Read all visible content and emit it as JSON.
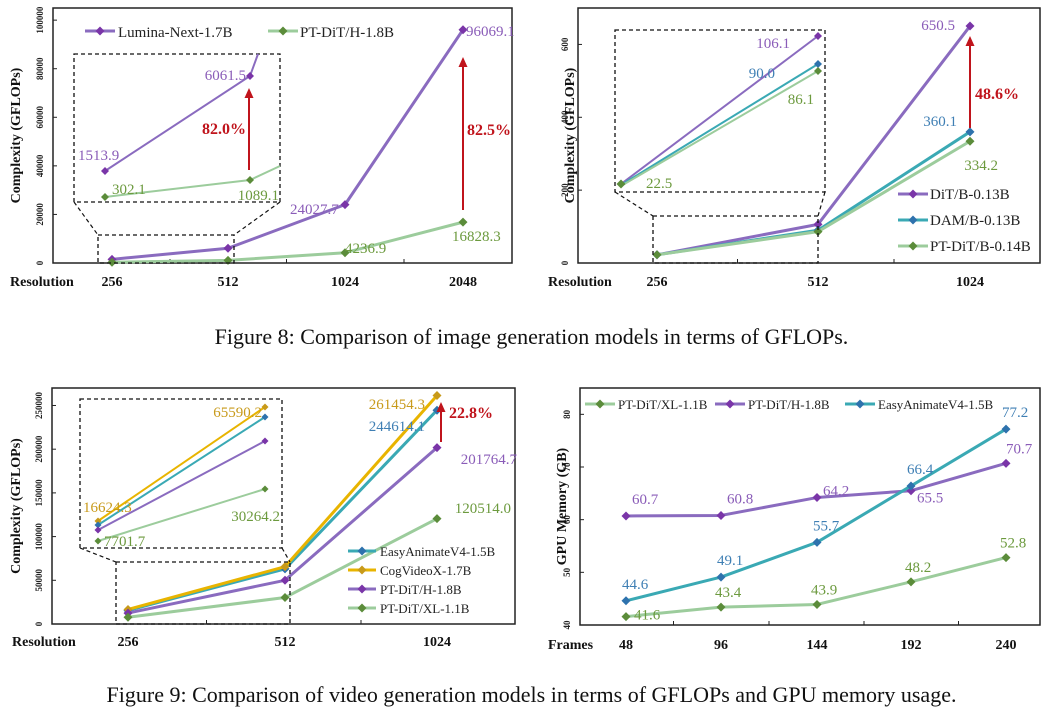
{
  "figures": [
    {
      "caption": "Figure 8: Comparison of image generation models in terms of GFLOPs."
    },
    {
      "caption": "Figure 9: Comparison of video generation models in terms of GFLOPs and GPU memory usage."
    }
  ],
  "chart_data": [
    {
      "id": "fig8-left",
      "type": "line",
      "title": "",
      "xlabel": "Resolution",
      "ylabel": "Complexity (GFLOPs)",
      "categories": [
        "256",
        "512",
        "1024",
        "2048"
      ],
      "ylim": [
        0,
        105000
      ],
      "yticks": [
        0,
        20000,
        40000,
        60000,
        80000,
        100000
      ],
      "grid": false,
      "legend": "top",
      "series": [
        {
          "name": "Lumina-Next-1.7B",
          "color": "#8a6bbf",
          "marker": "#7a35a8",
          "values": [
            1513.9,
            6061.5,
            24027.7,
            96069.1
          ],
          "labels": [
            "1513.9",
            "6061.5",
            "24027.7",
            "96069.1"
          ]
        },
        {
          "name": "PT-DiT/H-1.8B",
          "color": "#9ccc9c",
          "marker": "#5b8c3a",
          "values": [
            302.1,
            1089.1,
            4236.9,
            16828.3
          ],
          "labels": [
            "302.1",
            "1089.1",
            "4236.9",
            "16828.3"
          ]
        }
      ],
      "annotations": [
        {
          "text": "82.5%",
          "at": "2048",
          "color": "#c0141c"
        },
        {
          "text": "82.0%",
          "at": "512 (inset)",
          "color": "#c0141c"
        }
      ],
      "inset": {
        "covers": [
          "256",
          "512"
        ],
        "description": "zoomed view of 256-512 region"
      }
    },
    {
      "id": "fig8-right",
      "type": "line",
      "title": "",
      "xlabel": "Resolution",
      "ylabel": "Complexity (GFLOPs)",
      "categories": [
        "256",
        "512",
        "1024"
      ],
      "ylim": [
        0,
        700
      ],
      "yticks": [
        0,
        200,
        400,
        600
      ],
      "grid": false,
      "legend": "bottom-right",
      "series": [
        {
          "name": "DiT/B-0.13B",
          "color": "#8a6bbf",
          "marker": "#7a35a8",
          "values": [
            22.5,
            106.1,
            650.5
          ],
          "labels": [
            "",
            "106.1",
            "650.5"
          ]
        },
        {
          "name": "DAM/B-0.13B",
          "color": "#3aa9b4",
          "marker": "#2e72ad",
          "values": [
            22.5,
            90.0,
            360.1
          ],
          "labels": [
            "",
            "90.0",
            "360.1"
          ]
        },
        {
          "name": "PT-DiT/B-0.14B",
          "color": "#9ccc9c",
          "marker": "#5b8c3a",
          "values": [
            22.5,
            86.1,
            334.2
          ],
          "labels": [
            "22.5",
            "86.1",
            "334.2"
          ]
        }
      ],
      "annotations": [
        {
          "text": "48.6%",
          "at": "1024",
          "color": "#c0141c"
        }
      ],
      "inset": {
        "covers": [
          "256",
          "512"
        ],
        "description": "zoomed view of 256-512 region"
      }
    },
    {
      "id": "fig9-left",
      "type": "line",
      "title": "",
      "xlabel": "Resolution",
      "ylabel": "Complexity (GFLOPs)",
      "categories": [
        "256",
        "512",
        "1024"
      ],
      "ylim": [
        0,
        270000
      ],
      "yticks": [
        0,
        50000,
        100000,
        150000,
        200000,
        250000
      ],
      "grid": false,
      "legend": "bottom-right",
      "series": [
        {
          "name": "EasyAnimateV4-1.5B",
          "color": "#3aa9b4",
          "marker": "#2e72ad",
          "values": [
            15500,
            63000,
            244614.1
          ],
          "labels": [
            "",
            "",
            "244614.1"
          ]
        },
        {
          "name": "CogVideoX-1.7B",
          "color": "#e8b400",
          "marker": "#c89a1a",
          "values": [
            16624.3,
            65590.2,
            261454.3
          ],
          "labels": [
            "16624.3",
            "65590.2",
            "261454.3"
          ]
        },
        {
          "name": "PT-DiT/H-1.8B",
          "color": "#8a6bbf",
          "marker": "#7a35a8",
          "values": [
            12500,
            50000,
            201764.7
          ],
          "labels": [
            "",
            "",
            "201764.7"
          ]
        },
        {
          "name": "PT-DiT/XL-1.1B",
          "color": "#9ccc9c",
          "marker": "#5b8c3a",
          "values": [
            7701.7,
            30264.2,
            120514.0
          ],
          "labels": [
            "7701.7",
            "30264.2",
            "120514.0"
          ]
        }
      ],
      "annotations": [
        {
          "text": "22.8%",
          "at": "1024",
          "color": "#c0141c"
        }
      ],
      "inset": {
        "covers": [
          "256",
          "512"
        ],
        "description": "zoomed view of 256-512 region"
      }
    },
    {
      "id": "fig9-right",
      "type": "line",
      "title": "",
      "xlabel": "Frames",
      "ylabel": "GPU Memory (GB)",
      "categories": [
        "48",
        "96",
        "144",
        "192",
        "240"
      ],
      "ylim": [
        40,
        85
      ],
      "yticks": [
        40,
        50,
        60,
        70,
        80
      ],
      "grid": false,
      "legend": "top",
      "series": [
        {
          "name": "PT-DiT/XL-1.1B",
          "color": "#9ccc9c",
          "marker": "#5b8c3a",
          "values": [
            41.6,
            43.4,
            43.9,
            48.2,
            52.8
          ],
          "labels": [
            "41.6",
            "43.4",
            "43.9",
            "48.2",
            "52.8"
          ]
        },
        {
          "name": "PT-DiT/H-1.8B",
          "color": "#8a6bbf",
          "marker": "#7a35a8",
          "values": [
            60.7,
            60.8,
            64.2,
            65.5,
            70.7
          ],
          "labels": [
            "60.7",
            "60.8",
            "64.2",
            "65.5",
            "70.7"
          ]
        },
        {
          "name": "EasyAnimateV4-1.5B",
          "color": "#3aa9b4",
          "marker": "#2e72ad",
          "values": [
            44.6,
            49.1,
            55.7,
            66.4,
            77.2
          ],
          "labels": [
            "44.6",
            "49.1",
            "55.7",
            "66.4",
            "77.2"
          ]
        }
      ],
      "annotations": []
    }
  ]
}
